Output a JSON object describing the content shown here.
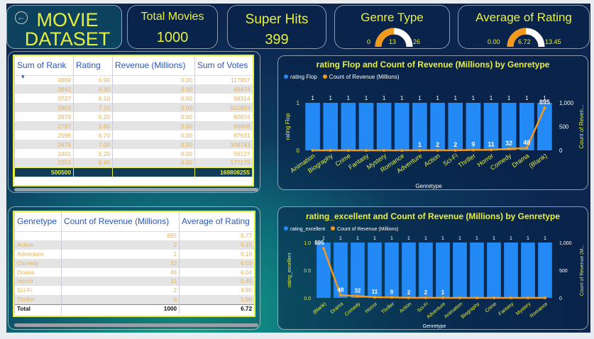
{
  "header": {
    "title": "MOVIE DATASET",
    "back_icon": "back-arrow-icon"
  },
  "kpis": {
    "total_movies": {
      "label": "Total Movies",
      "value": "1000"
    },
    "super_hits": {
      "label": "Super Hits",
      "value": "399"
    },
    "genre_type": {
      "label": "Genre Type",
      "min": "0",
      "value": "13",
      "max": "26",
      "fraction": 0.5
    },
    "avg_rating": {
      "label": "Average of Rating",
      "min": "0.00",
      "value": "6.72",
      "max": "13.45",
      "fraction": 0.5
    }
  },
  "table1": {
    "columns": [
      "Sum of Rank",
      "Rating",
      "Revenue (Millions)",
      "Sum of Votes"
    ],
    "rows": [
      [
        "4869",
        "6.90",
        "0.00",
        "117957"
      ],
      [
        "3942",
        "6.30",
        "0.00",
        "49474"
      ],
      [
        "3727",
        "6.10",
        "0.00",
        "58314"
      ],
      [
        "2903",
        "7.10",
        "0.00",
        "501893"
      ],
      [
        "2879",
        "6.20",
        "0.00",
        "60874"
      ],
      [
        "2797",
        "5.80",
        "0.00",
        "66608"
      ],
      [
        "2596",
        "6.70",
        "0.00",
        "87631"
      ],
      [
        "2478",
        "7.00",
        "0.00",
        "308743"
      ],
      [
        "2401",
        "6.20",
        "0.00",
        "56127"
      ],
      [
        "2353",
        "6.40",
        "0.00",
        "177179"
      ]
    ],
    "total": [
      "500500",
      "",
      "",
      "169808255"
    ]
  },
  "table2": {
    "columns": [
      "Genretype",
      "Count of Revenue (Millions)",
      "Average of Rating"
    ],
    "rows": [
      [
        "",
        "895",
        "6.77"
      ],
      [
        "Action",
        "2",
        "6.15"
      ],
      [
        "Adventure",
        "1",
        "6.10"
      ],
      [
        "Comedy",
        "32",
        "6.03"
      ],
      [
        "Drama",
        "48",
        "6.04"
      ],
      [
        "Horror",
        "11",
        "5.45"
      ],
      [
        "Sci-Fi",
        "2",
        "4.95"
      ],
      [
        "Thriller",
        "9",
        "5.96"
      ]
    ],
    "total": [
      "Total",
      "1000",
      "6.72"
    ]
  },
  "chart_data": [
    {
      "type": "bar",
      "title": "rating Flop and Count of Revenue (Millions) by Genretype",
      "xlabel": "Genretype",
      "ylabel": "rating Flop",
      "y2label": "Count of Reven...",
      "legend": {
        "position": "top-left",
        "entries": [
          "rating Flop",
          "Count of Revenue (Millions)"
        ]
      },
      "categories": [
        "Animation",
        "Biography",
        "Crime",
        "Fantasy",
        "Mystery",
        "Romance",
        "Adventure",
        "Action",
        "Sci-Fi",
        "Thriller",
        "Horror",
        "Comedy",
        "Drama",
        "(Blank)"
      ],
      "series": [
        {
          "name": "rating Flop",
          "type": "bar",
          "values": [
            1,
            1,
            1,
            1,
            1,
            1,
            1,
            1,
            1,
            1,
            1,
            1,
            1,
            1
          ],
          "color": "#2389f5"
        },
        {
          "name": "Count of Revenue (Millions)",
          "type": "line",
          "values": [
            0,
            0,
            0,
            0,
            0,
            0,
            1,
            2,
            2,
            9,
            11,
            32,
            48,
            895
          ],
          "color": "#f39a1c"
        }
      ],
      "y_ticks": [
        "0",
        "1"
      ],
      "y2_ticks": [
        "0",
        "500",
        "1,000"
      ],
      "ylim": [
        0,
        1
      ],
      "y2lim": [
        0,
        1000
      ]
    },
    {
      "type": "bar",
      "title": "rating_excellent and Count of Revenue (Millions) by Genretype",
      "xlabel": "Genretype",
      "ylabel": "rating_excellent",
      "y2label": "Count of Revenue (M...",
      "legend": {
        "position": "top-left",
        "entries": [
          "rating_excellent",
          "Count of Revenue (Millions)"
        ]
      },
      "categories": [
        "(Blank)",
        "Drama",
        "Comedy",
        "Horror",
        "Thriller",
        "Action",
        "Sci-Fi",
        "Adventure",
        "Animation",
        "Biography",
        "Crime",
        "Fantasy",
        "Mystery",
        "Romance"
      ],
      "series": [
        {
          "name": "rating_excellent",
          "type": "bar",
          "values": [
            1,
            1,
            1,
            1,
            1,
            1,
            1,
            1,
            1,
            1,
            1,
            1,
            1,
            1
          ],
          "color": "#2389f5"
        },
        {
          "name": "Count of Revenue (Millions)",
          "type": "line",
          "values": [
            895,
            48,
            32,
            11,
            9,
            2,
            2,
            1,
            0,
            0,
            0,
            0,
            0,
            0
          ],
          "color": "#f39a1c"
        }
      ],
      "y_ticks": [
        "0.0",
        "0.5",
        "1.0"
      ],
      "y2_ticks": [
        "0",
        "500",
        "1,000"
      ],
      "ylim": [
        0,
        1
      ],
      "y2lim": [
        0,
        1000
      ]
    }
  ]
}
